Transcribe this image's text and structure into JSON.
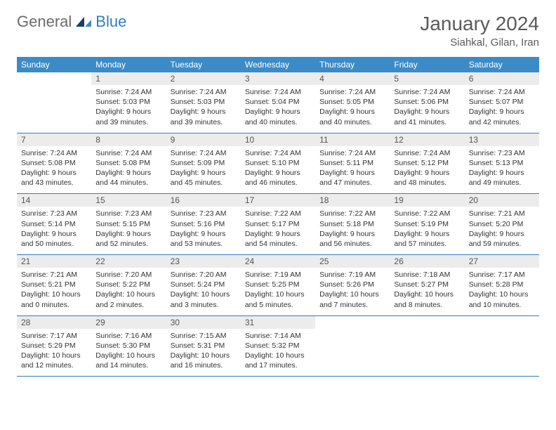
{
  "brand": {
    "word1": "General",
    "word2": "Blue"
  },
  "title": "January 2024",
  "location": "Siahkal, Gilan, Iran",
  "colors": {
    "header_bg": "#3b8bc8",
    "header_fg": "#ffffff",
    "daynum_bg": "#ececec",
    "rule": "#2f7fc2",
    "text": "#333333",
    "muted": "#5a5a5a"
  },
  "weekdays": [
    "Sunday",
    "Monday",
    "Tuesday",
    "Wednesday",
    "Thursday",
    "Friday",
    "Saturday"
  ],
  "start_offset": 1,
  "days": [
    {
      "n": 1,
      "sunrise": "7:24 AM",
      "sunset": "5:03 PM",
      "daylight": "9 hours and 39 minutes."
    },
    {
      "n": 2,
      "sunrise": "7:24 AM",
      "sunset": "5:03 PM",
      "daylight": "9 hours and 39 minutes."
    },
    {
      "n": 3,
      "sunrise": "7:24 AM",
      "sunset": "5:04 PM",
      "daylight": "9 hours and 40 minutes."
    },
    {
      "n": 4,
      "sunrise": "7:24 AM",
      "sunset": "5:05 PM",
      "daylight": "9 hours and 40 minutes."
    },
    {
      "n": 5,
      "sunrise": "7:24 AM",
      "sunset": "5:06 PM",
      "daylight": "9 hours and 41 minutes."
    },
    {
      "n": 6,
      "sunrise": "7:24 AM",
      "sunset": "5:07 PM",
      "daylight": "9 hours and 42 minutes."
    },
    {
      "n": 7,
      "sunrise": "7:24 AM",
      "sunset": "5:08 PM",
      "daylight": "9 hours and 43 minutes."
    },
    {
      "n": 8,
      "sunrise": "7:24 AM",
      "sunset": "5:08 PM",
      "daylight": "9 hours and 44 minutes."
    },
    {
      "n": 9,
      "sunrise": "7:24 AM",
      "sunset": "5:09 PM",
      "daylight": "9 hours and 45 minutes."
    },
    {
      "n": 10,
      "sunrise": "7:24 AM",
      "sunset": "5:10 PM",
      "daylight": "9 hours and 46 minutes."
    },
    {
      "n": 11,
      "sunrise": "7:24 AM",
      "sunset": "5:11 PM",
      "daylight": "9 hours and 47 minutes."
    },
    {
      "n": 12,
      "sunrise": "7:24 AM",
      "sunset": "5:12 PM",
      "daylight": "9 hours and 48 minutes."
    },
    {
      "n": 13,
      "sunrise": "7:23 AM",
      "sunset": "5:13 PM",
      "daylight": "9 hours and 49 minutes."
    },
    {
      "n": 14,
      "sunrise": "7:23 AM",
      "sunset": "5:14 PM",
      "daylight": "9 hours and 50 minutes."
    },
    {
      "n": 15,
      "sunrise": "7:23 AM",
      "sunset": "5:15 PM",
      "daylight": "9 hours and 52 minutes."
    },
    {
      "n": 16,
      "sunrise": "7:23 AM",
      "sunset": "5:16 PM",
      "daylight": "9 hours and 53 minutes."
    },
    {
      "n": 17,
      "sunrise": "7:22 AM",
      "sunset": "5:17 PM",
      "daylight": "9 hours and 54 minutes."
    },
    {
      "n": 18,
      "sunrise": "7:22 AM",
      "sunset": "5:18 PM",
      "daylight": "9 hours and 56 minutes."
    },
    {
      "n": 19,
      "sunrise": "7:22 AM",
      "sunset": "5:19 PM",
      "daylight": "9 hours and 57 minutes."
    },
    {
      "n": 20,
      "sunrise": "7:21 AM",
      "sunset": "5:20 PM",
      "daylight": "9 hours and 59 minutes."
    },
    {
      "n": 21,
      "sunrise": "7:21 AM",
      "sunset": "5:21 PM",
      "daylight": "10 hours and 0 minutes."
    },
    {
      "n": 22,
      "sunrise": "7:20 AM",
      "sunset": "5:22 PM",
      "daylight": "10 hours and 2 minutes."
    },
    {
      "n": 23,
      "sunrise": "7:20 AM",
      "sunset": "5:24 PM",
      "daylight": "10 hours and 3 minutes."
    },
    {
      "n": 24,
      "sunrise": "7:19 AM",
      "sunset": "5:25 PM",
      "daylight": "10 hours and 5 minutes."
    },
    {
      "n": 25,
      "sunrise": "7:19 AM",
      "sunset": "5:26 PM",
      "daylight": "10 hours and 7 minutes."
    },
    {
      "n": 26,
      "sunrise": "7:18 AM",
      "sunset": "5:27 PM",
      "daylight": "10 hours and 8 minutes."
    },
    {
      "n": 27,
      "sunrise": "7:17 AM",
      "sunset": "5:28 PM",
      "daylight": "10 hours and 10 minutes."
    },
    {
      "n": 28,
      "sunrise": "7:17 AM",
      "sunset": "5:29 PM",
      "daylight": "10 hours and 12 minutes."
    },
    {
      "n": 29,
      "sunrise": "7:16 AM",
      "sunset": "5:30 PM",
      "daylight": "10 hours and 14 minutes."
    },
    {
      "n": 30,
      "sunrise": "7:15 AM",
      "sunset": "5:31 PM",
      "daylight": "10 hours and 16 minutes."
    },
    {
      "n": 31,
      "sunrise": "7:14 AM",
      "sunset": "5:32 PM",
      "daylight": "10 hours and 17 minutes."
    }
  ],
  "labels": {
    "sunrise": "Sunrise:",
    "sunset": "Sunset:",
    "daylight": "Daylight:"
  }
}
